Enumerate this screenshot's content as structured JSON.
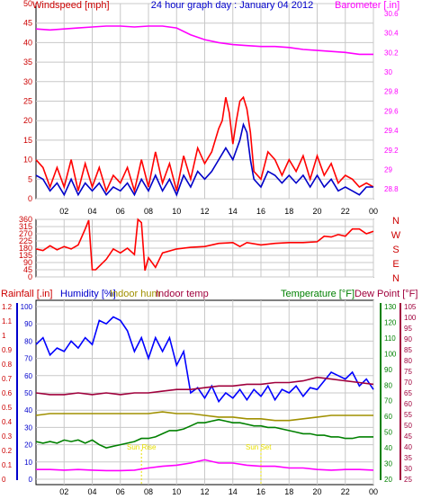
{
  "chart_data": [
    {
      "type": "line",
      "title": "24 hour graph day : January 04 2012",
      "ylabel": "Windspeed [mph]",
      "y2label": "Barometer [.in]",
      "x_ticks": [
        "02",
        "04",
        "06",
        "08",
        "10",
        "12",
        "14",
        "16",
        "18",
        "20",
        "22",
        "00"
      ],
      "xlim": [
        0,
        24
      ],
      "ylim": [
        0,
        50
      ],
      "y_ticks": [
        "0",
        "5",
        "10",
        "15",
        "20",
        "25",
        "30",
        "35",
        "40",
        "45",
        "50"
      ],
      "y2lim": [
        28.7,
        30.7
      ],
      "y2_ticks": [
        "28.8",
        "29",
        "29.2",
        "29.4",
        "29.6",
        "29.8",
        "30",
        "30.2",
        "30.4",
        "30.6"
      ],
      "grid": true,
      "series": [
        {
          "name": "Barometer [.in]",
          "axis": "right",
          "color": "#ff00ff",
          "x": [
            0,
            1,
            2,
            3,
            4,
            5,
            6,
            7,
            8,
            9,
            10,
            11,
            12,
            13,
            14,
            15,
            16,
            17,
            18,
            19,
            20,
            21,
            22,
            23,
            24
          ],
          "y": [
            30.44,
            30.43,
            30.44,
            30.45,
            30.46,
            30.47,
            30.47,
            30.46,
            30.47,
            30.47,
            30.45,
            30.38,
            30.33,
            30.3,
            30.28,
            30.27,
            30.26,
            30.26,
            30.25,
            30.23,
            30.22,
            30.21,
            30.2,
            30.18,
            30.18
          ]
        },
        {
          "name": "Wind gust",
          "axis": "left",
          "color": "#ff0000",
          "x": [
            0,
            0.5,
            1,
            1.5,
            2,
            2.5,
            3,
            3.5,
            4,
            4.5,
            5,
            5.5,
            6,
            6.5,
            7,
            7.5,
            8,
            8.5,
            9,
            9.5,
            10,
            10.5,
            11,
            11.5,
            12,
            12.5,
            13,
            13.25,
            13.5,
            13.75,
            14,
            14.25,
            14.5,
            14.75,
            15,
            15.25,
            15.5,
            16,
            16.5,
            17,
            17.5,
            18,
            18.5,
            19,
            19.5,
            20,
            20.5,
            21,
            21.5,
            22,
            22.5,
            23,
            23.5,
            24
          ],
          "y": [
            10,
            8,
            3,
            8,
            3,
            10,
            2,
            9,
            3,
            8,
            2,
            6,
            4,
            8,
            2,
            10,
            3,
            12,
            4,
            9,
            2,
            11,
            5,
            13,
            9,
            12,
            18,
            20,
            26,
            22,
            14,
            20,
            25,
            26,
            23,
            17,
            7,
            5,
            12,
            10,
            6,
            10,
            7,
            11,
            5,
            11,
            6,
            9,
            4,
            6,
            5,
            3,
            4,
            3
          ]
        },
        {
          "name": "Wind speed",
          "axis": "left",
          "color": "#0000c8",
          "x": [
            0,
            0.5,
            1,
            1.5,
            2,
            2.5,
            3,
            3.5,
            4,
            4.5,
            5,
            5.5,
            6,
            6.5,
            7,
            7.5,
            8,
            8.5,
            9,
            9.5,
            10,
            10.5,
            11,
            11.5,
            12,
            12.5,
            13,
            13.5,
            14,
            14.5,
            14.75,
            15,
            15.25,
            15.5,
            16,
            16.5,
            17,
            17.5,
            18,
            18.5,
            19,
            19.5,
            20,
            20.5,
            21,
            21.5,
            22,
            22.5,
            23,
            23.5,
            24
          ],
          "y": [
            6,
            5,
            2,
            4,
            1,
            5,
            1,
            4,
            2,
            4,
            1,
            3,
            2,
            4,
            1,
            5,
            2,
            6,
            2,
            5,
            1,
            6,
            3,
            7,
            5,
            7,
            10,
            13,
            10,
            15,
            19,
            17,
            10,
            5,
            3,
            7,
            6,
            4,
            6,
            4,
            6,
            3,
            6,
            3,
            5,
            2,
            3,
            2,
            1,
            3,
            3
          ]
        }
      ]
    },
    {
      "type": "line",
      "y_ticks": [
        "0",
        "45",
        "90",
        "135",
        "180",
        "225",
        "270",
        "315",
        "360"
      ],
      "ylim": [
        0,
        360
      ],
      "y2_ticks": [
        "N",
        "W",
        "S",
        "E",
        "N"
      ],
      "xlim": [
        0,
        24
      ],
      "grid": true,
      "series": [
        {
          "name": "Wind direction",
          "color": "#ff0000",
          "x": [
            0,
            0.5,
            1,
            1.5,
            2,
            2.5,
            3,
            3.5,
            3.75,
            4,
            4.25,
            5,
            5.5,
            6,
            6.5,
            7,
            7.25,
            7.5,
            7.75,
            8,
            8.5,
            9,
            10,
            11,
            12,
            13,
            14,
            14.5,
            15,
            16,
            17,
            18,
            19,
            20,
            20.5,
            21,
            21.5,
            22,
            22.5,
            23,
            23.5,
            24
          ],
          "y": [
            175,
            165,
            195,
            170,
            190,
            175,
            200,
            300,
            355,
            45,
            45,
            110,
            175,
            150,
            180,
            140,
            360,
            340,
            40,
            120,
            60,
            150,
            175,
            185,
            190,
            210,
            215,
            190,
            215,
            200,
            210,
            215,
            215,
            220,
            255,
            250,
            265,
            255,
            300,
            300,
            270,
            285
          ]
        }
      ]
    },
    {
      "type": "line",
      "x_ticks": [
        "02",
        "04",
        "06",
        "08",
        "10",
        "12",
        "14",
        "16",
        "18",
        "20",
        "22",
        "00"
      ],
      "xlim": [
        0,
        24
      ],
      "legend": [
        "Rainfall [.in]",
        "Humidity [%]",
        "Indoor hum",
        "Indoor temp",
        "Temperature [°F]",
        "Dew Point [°F]"
      ],
      "axis_rain_ticks": [
        "0",
        "0.1",
        "0.2",
        "0.3",
        "0.4",
        "0.5",
        "0.6",
        "0.7",
        "0.8",
        "0.9",
        "1",
        "1.1",
        "1.2"
      ],
      "axis_hum_ticks": [
        "0",
        "10",
        "20",
        "30",
        "40",
        "50",
        "60",
        "70",
        "80",
        "90",
        "100"
      ],
      "axis_temp_ticks": [
        "20",
        "30",
        "40",
        "50",
        "60",
        "70",
        "80",
        "90",
        "100",
        "110",
        "120",
        "130"
      ],
      "axis_dew_ticks": [
        "25",
        "30",
        "35",
        "40",
        "45",
        "50",
        "55",
        "60",
        "65",
        "70",
        "75",
        "80",
        "85",
        "90",
        "95",
        "100",
        "105"
      ],
      "annotations": [
        "Sun Rise",
        "Sun Set"
      ],
      "grid": true,
      "series": [
        {
          "name": "Humidity [%]",
          "color": "#0000ff",
          "unit_range": [
            0,
            100
          ],
          "x": [
            0,
            0.5,
            1,
            1.5,
            2,
            2.5,
            3,
            3.5,
            4,
            4.5,
            5,
            5.5,
            6,
            6.5,
            7,
            7.5,
            8,
            8.5,
            9,
            9.5,
            10,
            10.5,
            11,
            11.5,
            12,
            12.5,
            13,
            13.5,
            14,
            14.5,
            15,
            15.5,
            16,
            16.5,
            17,
            17.5,
            18,
            18.5,
            19,
            19.5,
            20,
            20.5,
            21,
            21.5,
            22,
            22.5,
            23,
            23.5,
            24
          ],
          "y": [
            78,
            82,
            72,
            76,
            74,
            80,
            76,
            82,
            78,
            92,
            90,
            94,
            92,
            86,
            74,
            82,
            70,
            82,
            74,
            82,
            66,
            74,
            50,
            53,
            47,
            54,
            45,
            50,
            47,
            52,
            46,
            52,
            48,
            54,
            46,
            52,
            50,
            54,
            48,
            53,
            52,
            57,
            62,
            60,
            58,
            62,
            54,
            58,
            52
          ]
        },
        {
          "name": "Indoor temp",
          "color": "#a0003c",
          "unit_range": [
            0,
            100
          ],
          "x": [
            0,
            1,
            2,
            3,
            4,
            5,
            6,
            7,
            8,
            9,
            10,
            11,
            12,
            13,
            14,
            15,
            16,
            17,
            18,
            19,
            20,
            21,
            22,
            23,
            24
          ],
          "y": [
            50,
            49,
            49,
            50,
            49,
            50,
            49,
            50,
            50,
            51,
            52,
            52,
            53,
            54,
            54,
            55,
            55,
            56,
            56,
            57,
            59,
            58,
            57,
            56,
            55
          ]
        },
        {
          "name": "Indoor hum",
          "color": "#a09000",
          "unit_range": [
            0,
            100
          ],
          "x": [
            0,
            1,
            2,
            3,
            4,
            5,
            6,
            7,
            8,
            9,
            10,
            11,
            12,
            13,
            14,
            15,
            16,
            17,
            18,
            19,
            20,
            21,
            22,
            23,
            24
          ],
          "y": [
            37,
            38,
            38,
            38,
            38,
            38,
            38,
            38,
            38,
            39,
            38,
            38,
            37,
            36,
            36,
            35,
            35,
            34,
            34,
            35,
            36,
            37,
            37,
            37,
            37
          ]
        },
        {
          "name": "Temperature [°F]",
          "color": "#008000",
          "unit_range": [
            20,
            130
          ],
          "x": [
            0,
            0.5,
            1,
            1.5,
            2,
            2.5,
            3,
            3.5,
            4,
            4.5,
            5,
            5.5,
            6,
            6.5,
            7,
            7.5,
            8,
            8.5,
            9,
            9.5,
            10,
            10.5,
            11,
            11.5,
            12,
            12.5,
            13,
            13.5,
            14,
            14.5,
            15,
            15.5,
            16,
            16.5,
            17,
            17.5,
            18,
            18.5,
            19,
            19.5,
            20,
            20.5,
            21,
            21.5,
            22,
            22.5,
            23,
            23.5,
            24
          ],
          "y": [
            44,
            43,
            44,
            43,
            45,
            44,
            45,
            43,
            45,
            42,
            40,
            41,
            42,
            43,
            44,
            46,
            46,
            47,
            49,
            51,
            51,
            52,
            54,
            56,
            56,
            57,
            58,
            57,
            56,
            56,
            55,
            54,
            54,
            53,
            53,
            52,
            51,
            50,
            49,
            49,
            48,
            48,
            47,
            47,
            46,
            46,
            47,
            47,
            47
          ]
        },
        {
          "name": "Dew Point [°F]",
          "color": "#ff00ff",
          "unit_range": [
            25,
            105
          ],
          "x": [
            0,
            1,
            2,
            3,
            4,
            5,
            6,
            7,
            8,
            9,
            10,
            11,
            12,
            13,
            14,
            15,
            16,
            17,
            18,
            19,
            20,
            21,
            22,
            23,
            24
          ],
          "y": [
            29.5,
            29.5,
            29.2,
            29.5,
            29.2,
            29,
            29,
            29.2,
            30.2,
            31,
            31.5,
            32.5,
            34,
            32.5,
            32.5,
            31.5,
            31,
            31,
            30.2,
            30.2,
            29.5,
            29.2,
            29.5,
            29.5,
            29.2
          ]
        }
      ]
    }
  ]
}
